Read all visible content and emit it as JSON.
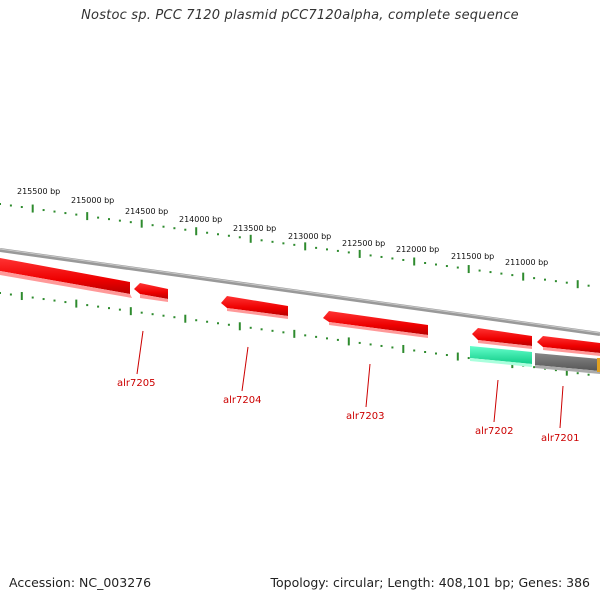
{
  "title": "Nostoc sp. PCC 7120 plasmid pCC7120alpha, complete sequence",
  "footer": {
    "accession": "Accession: NC_003276",
    "topology": "Topology: circular; Length: 408,101 bp; Genes: 386"
  },
  "colors": {
    "backbone": "#8a8a8a",
    "tick": "#2e8b2e",
    "gene_red": "#ee1111",
    "gene_green": "#22e0a0",
    "gene_grey": "#666666",
    "label": "#cc0000"
  },
  "tick_labels": [
    "215500 bp",
    "215000 bp",
    "214500 bp",
    "214000 bp",
    "213500 bp",
    "213000 bp",
    "212500 bp",
    "212000 bp",
    "211500 bp",
    "211000 bp"
  ],
  "gene_labels": [
    "alr7205",
    "alr7204",
    "alr7203",
    "alr7202",
    "alr7201"
  ]
}
